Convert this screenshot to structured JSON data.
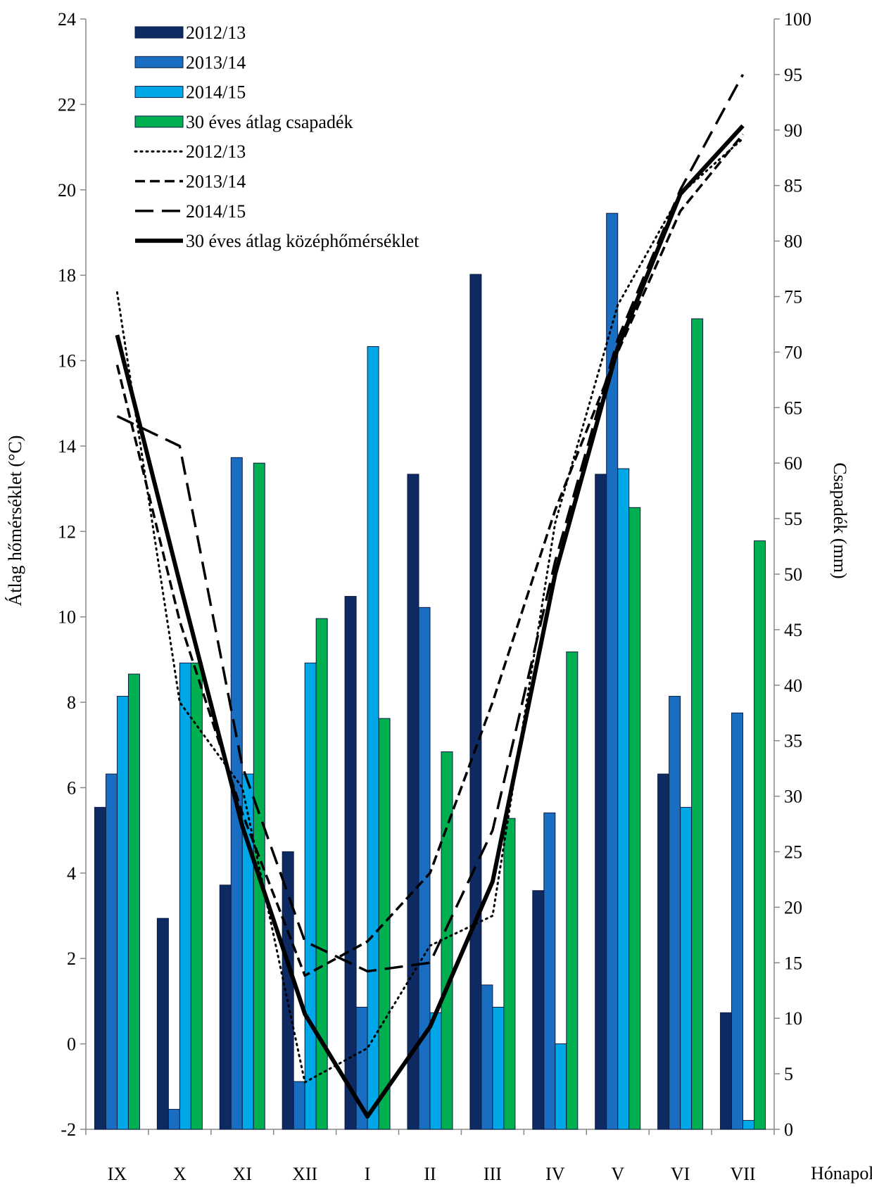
{
  "chart_data": {
    "type": "bar",
    "categories": [
      "IX",
      "X",
      "XI",
      "XII",
      "I",
      "II",
      "III",
      "IV",
      "V",
      "VI",
      "VII"
    ],
    "xlabel": "Hónapok",
    "y_left": {
      "label": "Átlag hőmérséklet (°C)",
      "lim": [
        -2,
        24
      ],
      "step": 2
    },
    "y_right": {
      "label": "Csapadék (mm)",
      "lim": [
        0,
        100
      ],
      "step": 5
    },
    "bar_series": [
      {
        "name": "2012/13",
        "axis": "right",
        "color": "#0d2a63",
        "values": [
          29,
          19,
          22,
          25,
          48,
          59,
          77,
          21.5,
          59,
          32,
          10.5
        ]
      },
      {
        "name": "2013/14",
        "axis": "right",
        "color": "#1a6ec2",
        "values": [
          32,
          1.8,
          60.5,
          4.3,
          11,
          47,
          13,
          28.5,
          82.5,
          39,
          37.5
        ]
      },
      {
        "name": "2014/15",
        "axis": "right",
        "color": "#00a8e8",
        "values": [
          39,
          42,
          32,
          42,
          70.5,
          10.5,
          11,
          7.7,
          59.5,
          29,
          0.8
        ]
      },
      {
        "name": "30 éves átlag csapadék",
        "axis": "right",
        "color": "#00b050",
        "values": [
          41,
          42,
          60,
          46,
          37,
          34,
          28,
          43,
          56,
          73,
          53
        ]
      }
    ],
    "line_series": [
      {
        "name": "2012/13",
        "axis": "left",
        "style": "dotted",
        "values": [
          17.6,
          8.0,
          6.0,
          -0.9,
          -0.1,
          2.3,
          3.0,
          12.2,
          17.3,
          19.9,
          21.2
        ]
      },
      {
        "name": "2013/14",
        "axis": "left",
        "style": "dashed",
        "values": [
          15.9,
          9.9,
          5.4,
          1.6,
          2.4,
          4.0,
          8.0,
          12.5,
          16.2,
          19.5,
          21.3
        ]
      },
      {
        "name": "2014/15",
        "axis": "left",
        "style": "longdash",
        "values": [
          14.7,
          14.0,
          6.5,
          2.4,
          1.7,
          1.9,
          5.0,
          11.3,
          16.5,
          20.0,
          22.7
        ]
      },
      {
        "name": "30 éves átlag középhőmérséklet",
        "axis": "left",
        "style": "solid",
        "values": [
          16.6,
          10.8,
          5.1,
          0.7,
          -1.7,
          0.4,
          3.8,
          11.0,
          16.3,
          19.9,
          21.5
        ]
      }
    ],
    "legend_position": "top-left",
    "grid": false
  }
}
